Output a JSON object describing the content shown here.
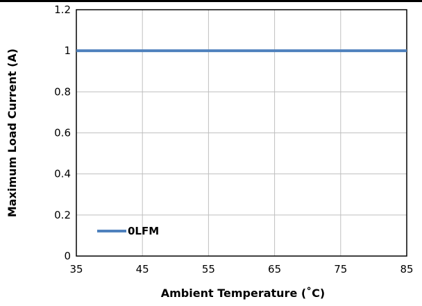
{
  "chart_data": {
    "type": "line",
    "title": "",
    "xlabel": "Ambient Temperature (˚C)",
    "ylabel": "Maximum Load Current (A)",
    "xlim": [
      35,
      85
    ],
    "ylim": [
      0,
      1.2
    ],
    "x_ticks": [
      "35",
      "45",
      "55",
      "65",
      "75",
      "85"
    ],
    "y_ticks": [
      "0",
      "0.2",
      "0.4",
      "0.6",
      "0.8",
      "1",
      "1.2"
    ],
    "grid": true,
    "legend_position": "bottom-left",
    "series": [
      {
        "name": "0LFM",
        "color": "#4f81bd",
        "x": [
          35,
          85
        ],
        "y": [
          1,
          1
        ]
      }
    ]
  }
}
